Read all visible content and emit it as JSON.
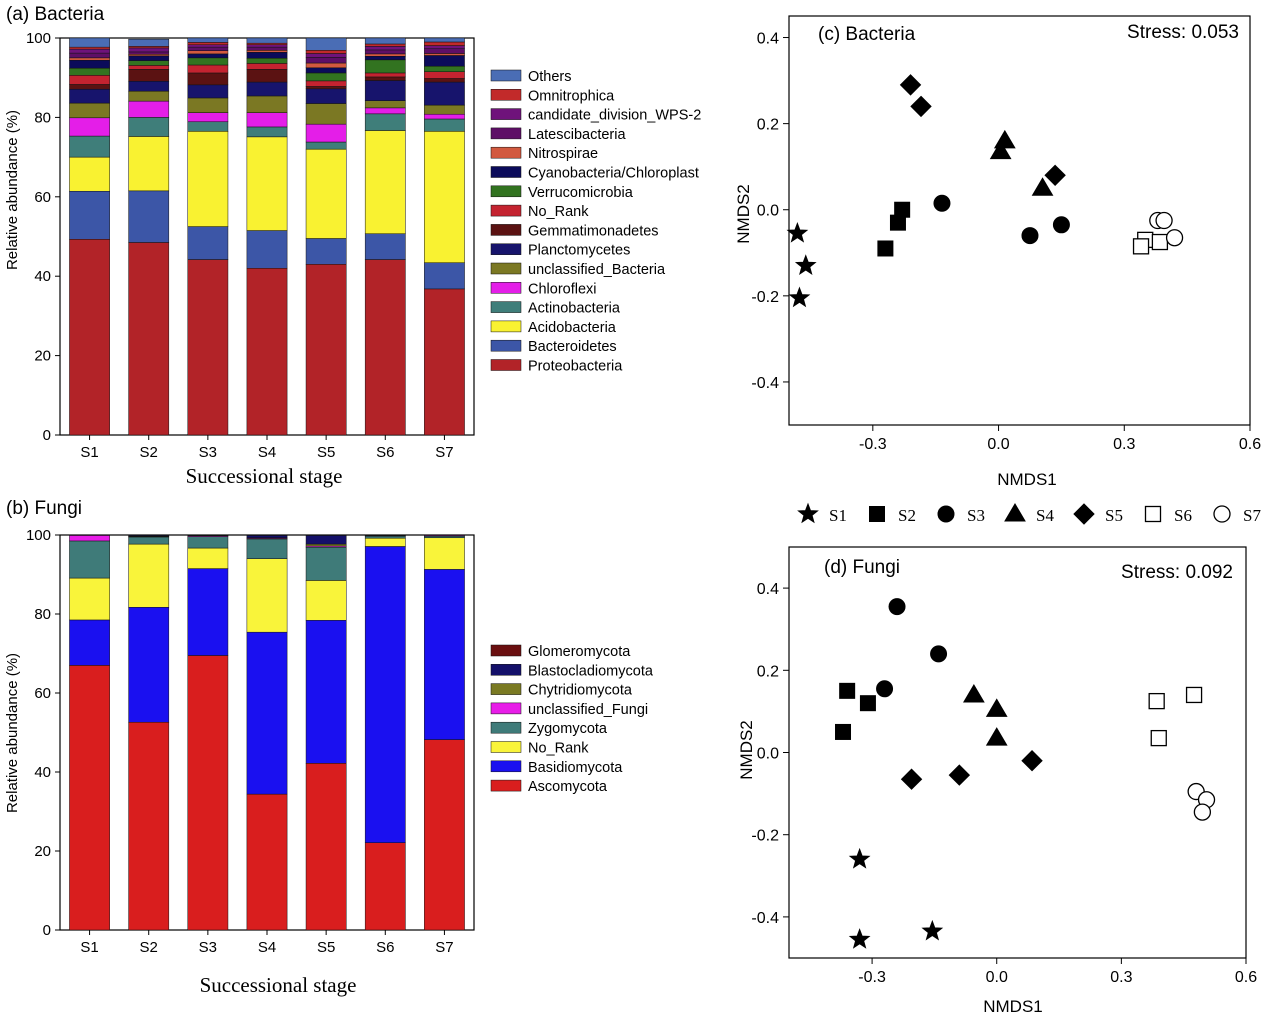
{
  "chart_data": [
    {
      "type": "bar",
      "stacked": true,
      "panel_label": "(a) Bacteria",
      "xlabel": "Successional stage",
      "ylabel": "Relative abundance (%)",
      "ylim": [
        0,
        100
      ],
      "yticks": [
        "0",
        "20",
        "40",
        "60",
        "80",
        "100"
      ],
      "categories": [
        "S1",
        "S2",
        "S3",
        "S4",
        "S5",
        "S6",
        "S7"
      ],
      "legend_placement": "right",
      "series": [
        {
          "name": "Proteobacteria",
          "color": "#b22328",
          "values": [
            49.3,
            48.5,
            44.2,
            42.0,
            43.0,
            44.2,
            36.8
          ]
        },
        {
          "name": "Bacteroidetes",
          "color": "#3c56a7",
          "values": [
            12.1,
            13.0,
            8.3,
            9.5,
            6.5,
            6.5,
            6.6
          ]
        },
        {
          "name": "Acidobacteria",
          "color": "#f9f231",
          "values": [
            8.6,
            13.7,
            24.0,
            23.6,
            22.5,
            26.0,
            33.1
          ]
        },
        {
          "name": "Actinobacteria",
          "color": "#3f7e7a",
          "values": [
            5.3,
            4.8,
            2.4,
            2.5,
            1.8,
            4.2,
            3.1
          ]
        },
        {
          "name": "Chloroflexi",
          "color": "#e41ee8",
          "values": [
            4.6,
            4.1,
            2.3,
            3.6,
            4.5,
            1.5,
            1.2
          ]
        },
        {
          "name": "unclassified_Bacteria",
          "color": "#7b7823",
          "values": [
            3.7,
            2.5,
            3.7,
            4.2,
            5.2,
            1.8,
            2.3
          ]
        },
        {
          "name": "Planctomycetes",
          "color": "#17146c",
          "values": [
            3.5,
            2.5,
            3.3,
            3.5,
            3.7,
            5.1,
            5.8
          ]
        },
        {
          "name": "Gemmatimonadetes",
          "color": "#5b1212",
          "values": [
            1.2,
            3.0,
            3.0,
            3.2,
            0.6,
            0.9,
            0.9
          ]
        },
        {
          "name": "No_Rank",
          "color": "#c42330",
          "values": [
            2.3,
            1.0,
            2.0,
            1.5,
            1.4,
            1.0,
            1.7
          ]
        },
        {
          "name": "Verrucomicrobia",
          "color": "#327320",
          "values": [
            1.8,
            1.2,
            1.8,
            1.3,
            2.0,
            3.3,
            1.4
          ]
        },
        {
          "name": "Cyanobacteria/Chloroplast",
          "color": "#0b0b5a",
          "values": [
            2.0,
            1.2,
            1.0,
            1.5,
            1.3,
            0.9,
            2.7
          ]
        },
        {
          "name": "Nitrospirae",
          "color": "#d2593f",
          "values": [
            0.6,
            0.4,
            0.8,
            0.5,
            1.2,
            0.6,
            0.5
          ]
        },
        {
          "name": "Latescibacteria",
          "color": "#5e0f66",
          "values": [
            1.2,
            0.6,
            0.9,
            0.8,
            1.4,
            1.0,
            1.2
          ]
        },
        {
          "name": "candidate_division_WPS-2",
          "color": "#6f137b",
          "values": [
            1.0,
            1.0,
            0.6,
            0.6,
            1.0,
            0.9,
            0.8
          ]
        },
        {
          "name": "Omnitrophica",
          "color": "#c22a2a",
          "values": [
            0.5,
            0.4,
            0.6,
            0.4,
            0.8,
            0.6,
            0.9
          ]
        },
        {
          "name": "Others",
          "color": "#4a6db5",
          "values": [
            2.3,
            1.8,
            1.1,
            1.3,
            3.1,
            1.5,
            1.0
          ]
        }
      ]
    },
    {
      "type": "bar",
      "stacked": true,
      "panel_label": "(b) Fungi",
      "xlabel": "Successional stage",
      "ylabel": "Relative abundance (%)",
      "ylim": [
        0,
        100
      ],
      "yticks": [
        "0",
        "20",
        "40",
        "60",
        "80",
        "100"
      ],
      "categories": [
        "S1",
        "S2",
        "S3",
        "S4",
        "S5",
        "S6",
        "S7"
      ],
      "legend_placement": "right",
      "series": [
        {
          "name": "Ascomycota",
          "color": "#d91e1e",
          "values": [
            67.0,
            52.6,
            69.5,
            34.4,
            42.2,
            22.1,
            48.2
          ]
        },
        {
          "name": "Basidiomycota",
          "color": "#1a10f0",
          "values": [
            11.5,
            29.1,
            22.0,
            41.0,
            36.2,
            75.0,
            43.1
          ]
        },
        {
          "name": "No_Rank",
          "color": "#f9f43a",
          "values": [
            10.6,
            16.0,
            5.2,
            18.6,
            10.1,
            2.1,
            8.0
          ]
        },
        {
          "name": "Zygomycota",
          "color": "#3f7b79",
          "values": [
            9.4,
            1.8,
            2.9,
            5.0,
            8.4,
            0.5,
            0.4
          ]
        },
        {
          "name": "unclassified_Fungi",
          "color": "#e81de8",
          "values": [
            1.4,
            0.1,
            0.2,
            0.2,
            0.3,
            0.1,
            0.2
          ]
        },
        {
          "name": "Chytridiomycota",
          "color": "#7a7a23",
          "values": [
            0.0,
            0.1,
            0.1,
            0.1,
            0.5,
            0.1,
            0.0
          ]
        },
        {
          "name": "Blastocladiomycota",
          "color": "#14106a",
          "values": [
            0.0,
            0.2,
            0.1,
            0.6,
            2.2,
            0.1,
            0.0
          ]
        },
        {
          "name": "Glomeromycota",
          "color": "#6a0f10",
          "values": [
            0.1,
            0.1,
            0.0,
            0.1,
            0.1,
            0.0,
            0.1
          ]
        }
      ]
    },
    {
      "type": "scatter",
      "panel_label": "(c) Bacteria",
      "stress_label": "Stress: 0.053",
      "xlabel": "NMDS1",
      "ylabel": "NMDS2",
      "xlim": [
        -0.5,
        0.6
      ],
      "ylim": [
        -0.5,
        0.45
      ],
      "xticks": [
        -0.3,
        0.0,
        0.3,
        0.6
      ],
      "xtick_labels": [
        "-0.3",
        "0.0",
        "0.3",
        "0.6"
      ],
      "yticks": [
        -0.4,
        -0.2,
        0.0,
        0.2,
        0.4
      ],
      "ytick_labels": [
        "-0.4",
        "-0.2",
        "0.0",
        "0.2",
        "0.4"
      ],
      "series": [
        {
          "name": "S1",
          "marker": "star",
          "filled": true,
          "points": [
            [
              -0.48,
              -0.055
            ],
            [
              -0.46,
              -0.13
            ],
            [
              -0.475,
              -0.205
            ]
          ]
        },
        {
          "name": "S2",
          "marker": "square",
          "filled": true,
          "points": [
            [
              -0.23,
              0.0
            ],
            [
              -0.24,
              -0.03
            ],
            [
              -0.27,
              -0.09
            ]
          ]
        },
        {
          "name": "S3",
          "marker": "circle",
          "filled": true,
          "points": [
            [
              -0.135,
              0.015
            ],
            [
              0.075,
              -0.06
            ],
            [
              0.15,
              -0.035
            ]
          ]
        },
        {
          "name": "S4",
          "marker": "triangle",
          "filled": true,
          "points": [
            [
              0.015,
              0.16
            ],
            [
              0.005,
              0.135
            ],
            [
              0.105,
              0.05
            ]
          ]
        },
        {
          "name": "S5",
          "marker": "diamond",
          "filled": true,
          "points": [
            [
              -0.21,
              0.29
            ],
            [
              -0.185,
              0.24
            ],
            [
              0.135,
              0.08
            ]
          ]
        },
        {
          "name": "S6",
          "marker": "square",
          "filled": false,
          "points": [
            [
              0.35,
              -0.07
            ],
            [
              0.385,
              -0.075
            ],
            [
              0.34,
              -0.085
            ]
          ]
        },
        {
          "name": "S7",
          "marker": "circle",
          "filled": false,
          "points": [
            [
              0.38,
              -0.025
            ],
            [
              0.395,
              -0.025
            ],
            [
              0.42,
              -0.065
            ]
          ]
        }
      ]
    },
    {
      "type": "scatter",
      "panel_label": "(d) Fungi",
      "stress_label": "Stress: 0.092",
      "xlabel": "NMDS1",
      "ylabel": "NMDS2",
      "xlim": [
        -0.5,
        0.6
      ],
      "ylim": [
        -0.5,
        0.5
      ],
      "xticks": [
        -0.3,
        0.0,
        0.3,
        0.6
      ],
      "xtick_labels": [
        "-0.3",
        "0.0",
        "0.3",
        "0.6"
      ],
      "yticks": [
        -0.4,
        -0.2,
        0.0,
        0.2,
        0.4
      ],
      "ytick_labels": [
        "-0.4",
        "-0.2",
        "0.0",
        "0.2",
        "0.4"
      ],
      "series": [
        {
          "name": "S1",
          "marker": "star",
          "filled": true,
          "points": [
            [
              -0.33,
              -0.26
            ],
            [
              -0.33,
              -0.455
            ],
            [
              -0.155,
              -0.435
            ]
          ]
        },
        {
          "name": "S2",
          "marker": "square",
          "filled": true,
          "points": [
            [
              -0.36,
              0.15
            ],
            [
              -0.31,
              0.12
            ],
            [
              -0.37,
              0.05
            ]
          ]
        },
        {
          "name": "S3",
          "marker": "circle",
          "filled": true,
          "points": [
            [
              -0.24,
              0.355
            ],
            [
              -0.14,
              0.24
            ],
            [
              -0.27,
              0.155
            ]
          ]
        },
        {
          "name": "S4",
          "marker": "triangle",
          "filled": true,
          "points": [
            [
              -0.055,
              0.14
            ],
            [
              0.0,
              0.105
            ],
            [
              0.0,
              0.035
            ]
          ]
        },
        {
          "name": "S5",
          "marker": "diamond",
          "filled": true,
          "points": [
            [
              -0.205,
              -0.065
            ],
            [
              -0.09,
              -0.055
            ],
            [
              0.085,
              -0.02
            ]
          ]
        },
        {
          "name": "S6",
          "marker": "square",
          "filled": false,
          "points": [
            [
              0.385,
              0.125
            ],
            [
              0.475,
              0.14
            ],
            [
              0.39,
              0.035
            ]
          ]
        },
        {
          "name": "S7",
          "marker": "circle",
          "filled": false,
          "points": [
            [
              0.48,
              -0.095
            ],
            [
              0.505,
              -0.115
            ],
            [
              0.495,
              -0.145
            ]
          ]
        }
      ]
    }
  ],
  "shared_legend": {
    "entries": [
      "S1",
      "S2",
      "S3",
      "S4",
      "S5",
      "S6",
      "S7"
    ],
    "placement": "between panels (c) and (d)"
  }
}
